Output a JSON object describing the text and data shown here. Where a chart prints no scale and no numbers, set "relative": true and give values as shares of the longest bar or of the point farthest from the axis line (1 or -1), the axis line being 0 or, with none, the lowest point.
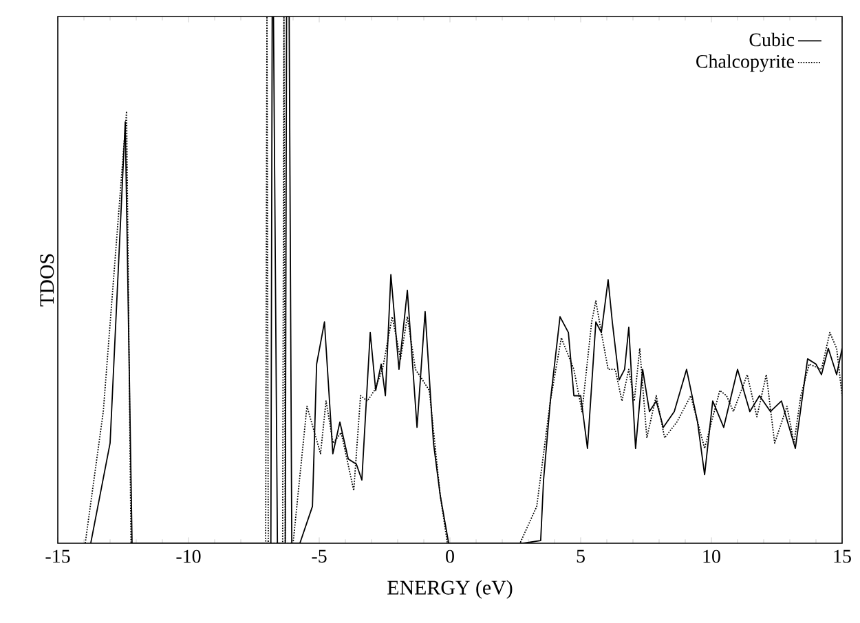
{
  "chart_data": {
    "type": "line",
    "xlabel": "ENERGY (eV)",
    "ylabel": "TDOS",
    "relative": true,
    "xlim": [
      -15,
      15
    ],
    "xticks": [
      -15,
      -10,
      -5,
      0,
      5,
      10,
      15
    ],
    "legend": "top right",
    "marker": "none",
    "series": [
      {
        "name": "Cubic",
        "color": "#000000",
        "line_style": "solid",
        "x": [
          -13.74,
          -13.0,
          -12.42,
          -12.16,
          -6.85,
          -6.8,
          -6.75,
          -6.6,
          -6.3,
          -6.25,
          -6.15,
          -6.05,
          -5.74,
          -5.26,
          -5.1,
          -4.8,
          -4.48,
          -4.21,
          -3.89,
          -3.58,
          -3.37,
          -3.05,
          -2.84,
          -2.63,
          -2.47,
          -2.26,
          -1.95,
          -1.63,
          -1.26,
          -0.95,
          -0.63,
          -0.37,
          -0.05,
          2.79,
          3.47,
          3.58,
          3.84,
          4.21,
          4.53,
          4.74,
          5.0,
          5.26,
          5.58,
          5.79,
          6.05,
          6.21,
          6.47,
          6.68,
          6.84,
          7.1,
          7.37,
          7.63,
          7.89,
          8.16,
          8.58,
          9.05,
          9.47,
          9.74,
          10.05,
          10.47,
          11.0,
          11.47,
          11.84,
          12.26,
          12.68,
          13.21,
          13.68,
          14.0,
          14.21,
          14.47,
          14.79,
          15.0
        ],
        "values": [
          0,
          0.19,
          0.8,
          0,
          0,
          1,
          1,
          0,
          0,
          1,
          1,
          0,
          0,
          0.07,
          0.34,
          0.42,
          0.17,
          0.23,
          0.16,
          0.15,
          0.12,
          0.4,
          0.29,
          0.34,
          0.28,
          0.51,
          0.33,
          0.48,
          0.22,
          0.44,
          0.19,
          0.09,
          0,
          0,
          0.005,
          0.12,
          0.27,
          0.43,
          0.4,
          0.28,
          0.28,
          0.18,
          0.42,
          0.4,
          0.5,
          0.42,
          0.31,
          0.33,
          0.41,
          0.18,
          0.33,
          0.25,
          0.27,
          0.22,
          0.25,
          0.33,
          0.23,
          0.13,
          0.27,
          0.22,
          0.33,
          0.25,
          0.28,
          0.25,
          0.27,
          0.18,
          0.35,
          0.34,
          0.32,
          0.37,
          0.32,
          0.37
        ]
      },
      {
        "name": "Chalcopyrite",
        "color": "#000000",
        "line_style": "dotted",
        "x": [
          -13.95,
          -13.26,
          -12.37,
          -12.2,
          -7.05,
          -7.0,
          -6.95,
          -6.4,
          -6.35,
          -6.3,
          -6.0,
          -5.47,
          -4.95,
          -4.74,
          -4.47,
          -4.16,
          -3.68,
          -3.42,
          -3.16,
          -2.89,
          -2.58,
          -2.21,
          -1.89,
          -1.63,
          -1.32,
          -1.05,
          -0.79,
          -0.37,
          -0.1,
          2.68,
          3.32,
          3.84,
          4.26,
          4.74,
          5.05,
          5.42,
          5.58,
          5.79,
          6.05,
          6.32,
          6.58,
          6.84,
          7.05,
          7.26,
          7.53,
          7.89,
          8.21,
          8.68,
          9.21,
          9.74,
          10.32,
          10.58,
          10.84,
          11.37,
          11.74,
          12.1,
          12.42,
          12.89,
          13.16,
          13.42,
          13.74,
          14.21,
          14.53,
          14.79,
          15.0
        ],
        "values": [
          0,
          0.25,
          0.82,
          0,
          0,
          1,
          0,
          0,
          1,
          0,
          0,
          0.26,
          0.17,
          0.27,
          0.19,
          0.21,
          0.1,
          0.28,
          0.27,
          0.29,
          0.33,
          0.43,
          0.35,
          0.43,
          0.33,
          0.31,
          0.29,
          0.09,
          0,
          0,
          0.07,
          0.27,
          0.39,
          0.33,
          0.25,
          0.42,
          0.46,
          0.4,
          0.33,
          0.33,
          0.27,
          0.33,
          0.27,
          0.37,
          0.2,
          0.28,
          0.2,
          0.23,
          0.28,
          0.18,
          0.29,
          0.28,
          0.25,
          0.32,
          0.24,
          0.32,
          0.19,
          0.26,
          0.19,
          0.28,
          0.34,
          0.33,
          0.4,
          0.37,
          0.28
        ]
      }
    ]
  }
}
